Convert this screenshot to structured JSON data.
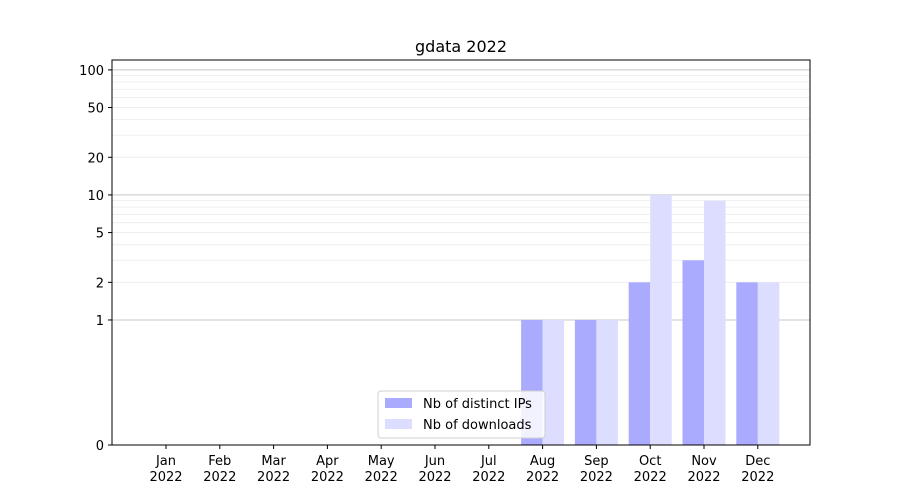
{
  "chart_data": {
    "type": "bar",
    "title": "gdata 2022",
    "xlabel": "",
    "ylabel": "",
    "y_scale": "symlog",
    "ylim": [
      0,
      120
    ],
    "yticks": [
      0,
      1,
      2,
      5,
      10,
      20,
      50,
      100
    ],
    "categories": [
      "Jan\n2022",
      "Feb\n2022",
      "Mar\n2022",
      "Apr\n2022",
      "May\n2022",
      "Jun\n2022",
      "Jul\n2022",
      "Aug\n2022",
      "Sep\n2022",
      "Oct\n2022",
      "Nov\n2022",
      "Dec\n2022"
    ],
    "series": [
      {
        "name": "Nb of distinct IPs",
        "color": "#aaaaff",
        "values": [
          0,
          0,
          0,
          0,
          0,
          0,
          0,
          1,
          1,
          2,
          3,
          2
        ]
      },
      {
        "name": "Nb of downloads",
        "color": "#ddddff",
        "values": [
          0,
          0,
          0,
          0,
          0,
          0,
          0,
          1,
          1,
          10,
          9,
          2
        ]
      }
    ],
    "grid": true,
    "legend_position": "bottom-center"
  }
}
